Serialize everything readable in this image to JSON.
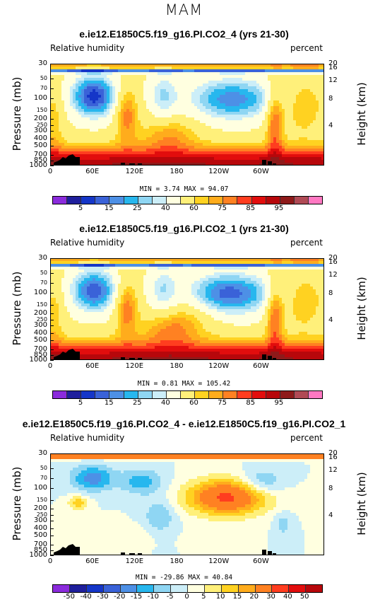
{
  "page_title": "MAM",
  "panels": [
    {
      "title": "e.ie12.E1850C5.f19_g16.PI.CO2_4 (yrs 21-30)",
      "left_label": "Relative humidity",
      "right_label": "percent",
      "ylabel": "Pressure (mb)",
      "ylabel_right": "Height (km)",
      "stats": "MIN =    3.74  MAX =  94.07",
      "colorbar_labels": [
        "5",
        "15",
        "25",
        "40",
        "60",
        "75",
        "85",
        "95"
      ],
      "colors": [
        "#8b2bdc",
        "#1f1f9c",
        "#1536c8",
        "#3a62d8",
        "#4d90e6",
        "#27b7ee",
        "#8fd6f3",
        "#cceef8",
        "#ffffe0",
        "#fff07a",
        "#ffd221",
        "#ffac1c",
        "#ff8122",
        "#ff3d1f",
        "#e20d0d",
        "#b7070b",
        "#8e1a1a",
        "#b04a55",
        "#ff78c2"
      ]
    },
    {
      "title": "e.ie12.E1850C5.f19_g16.PI.CO2_1 (yrs 21-30)",
      "left_label": "Relative humidity",
      "right_label": "percent",
      "ylabel": "Pressure (mb)",
      "ylabel_right": "Height (km)",
      "stats": "MIN =    0.81  MAX = 105.42",
      "colorbar_labels": [
        "5",
        "15",
        "25",
        "40",
        "60",
        "75",
        "85",
        "95"
      ],
      "colors": [
        "#8b2bdc",
        "#1f1f9c",
        "#1536c8",
        "#3a62d8",
        "#4d90e6",
        "#27b7ee",
        "#8fd6f3",
        "#cceef8",
        "#ffffe0",
        "#fff07a",
        "#ffd221",
        "#ffac1c",
        "#ff8122",
        "#ff3d1f",
        "#e20d0d",
        "#b7070b",
        "#8e1a1a",
        "#b04a55",
        "#ff78c2"
      ]
    },
    {
      "title": "e.ie12.E1850C5.f19_g16.PI.CO2_4 - e.ie12.E1850C5.f19_g16.PI.CO2_1",
      "left_label": "Relative humidity",
      "right_label": "percent",
      "ylabel": "Pressure (mb)",
      "ylabel_right": "Height (km)",
      "stats": "MIN =  -29.86  MAX =  40.84",
      "colorbar_labels": [
        "-50",
        "-40",
        "-30",
        "-20",
        "-15",
        "-10",
        "-5",
        "0",
        "5",
        "10",
        "15",
        "20",
        "30",
        "40",
        "50"
      ],
      "colors": [
        "#8b2bdc",
        "#1f1f9c",
        "#1536c8",
        "#3a62d8",
        "#4d90e6",
        "#27b7ee",
        "#8fd6f3",
        "#cceef8",
        "#ffffe0",
        "#fff07a",
        "#ffd221",
        "#ffac1c",
        "#ff8122",
        "#ff3d1f",
        "#e20d0d",
        "#b7070b"
      ]
    }
  ],
  "chart_data": [
    {
      "type": "heatmap",
      "title": "e.ie12.E1850C5.f19_g16.PI.CO2_4 (yrs 21-30)",
      "variable": "Relative humidity",
      "units": "percent",
      "xlabel": "",
      "ylabel": "Pressure (mb)",
      "ylabel_right": "Height (km)",
      "x_ticks": [
        "0",
        "60E",
        "120E",
        "180",
        "120W",
        "60W"
      ],
      "y_ticks": [
        30,
        50,
        70,
        100,
        150,
        200,
        250,
        300,
        400,
        500,
        700,
        850,
        1000
      ],
      "y_ticks_right": [
        20,
        16,
        12,
        8,
        4
      ],
      "contour_levels": [
        5,
        10,
        15,
        20,
        25,
        30,
        35,
        40,
        50,
        60,
        65,
        70,
        75,
        80,
        85,
        90,
        95
      ],
      "min": 3.74,
      "max": 94.07
    },
    {
      "type": "heatmap",
      "title": "e.ie12.E1850C5.f19_g16.PI.CO2_1 (yrs 21-30)",
      "variable": "Relative humidity",
      "units": "percent",
      "xlabel": "",
      "ylabel": "Pressure (mb)",
      "ylabel_right": "Height (km)",
      "x_ticks": [
        "0",
        "60E",
        "120E",
        "180",
        "120W",
        "60W"
      ],
      "y_ticks": [
        30,
        50,
        70,
        100,
        150,
        200,
        250,
        300,
        400,
        500,
        700,
        850,
        1000
      ],
      "y_ticks_right": [
        20,
        16,
        12,
        8,
        4
      ],
      "contour_levels": [
        5,
        10,
        15,
        20,
        25,
        30,
        35,
        40,
        50,
        60,
        65,
        70,
        75,
        80,
        85,
        90,
        95
      ],
      "min": 0.81,
      "max": 105.42
    },
    {
      "type": "heatmap",
      "title": "e.ie12.E1850C5.f19_g16.PI.CO2_4 - e.ie12.E1850C5.f19_g16.PI.CO2_1",
      "variable": "Relative humidity",
      "units": "percent",
      "xlabel": "",
      "ylabel": "Pressure (mb)",
      "ylabel_right": "Height (km)",
      "x_ticks": [
        "0",
        "60E",
        "120E",
        "180",
        "120W",
        "60W"
      ],
      "y_ticks": [
        30,
        50,
        70,
        100,
        150,
        200,
        250,
        300,
        400,
        500,
        700,
        850,
        1000
      ],
      "y_ticks_right": [
        20,
        16,
        12,
        8,
        4
      ],
      "contour_levels": [
        -50,
        -40,
        -30,
        -20,
        -15,
        -10,
        -5,
        0,
        5,
        10,
        15,
        20,
        30,
        40,
        50
      ],
      "min": -29.86,
      "max": 40.84
    }
  ]
}
